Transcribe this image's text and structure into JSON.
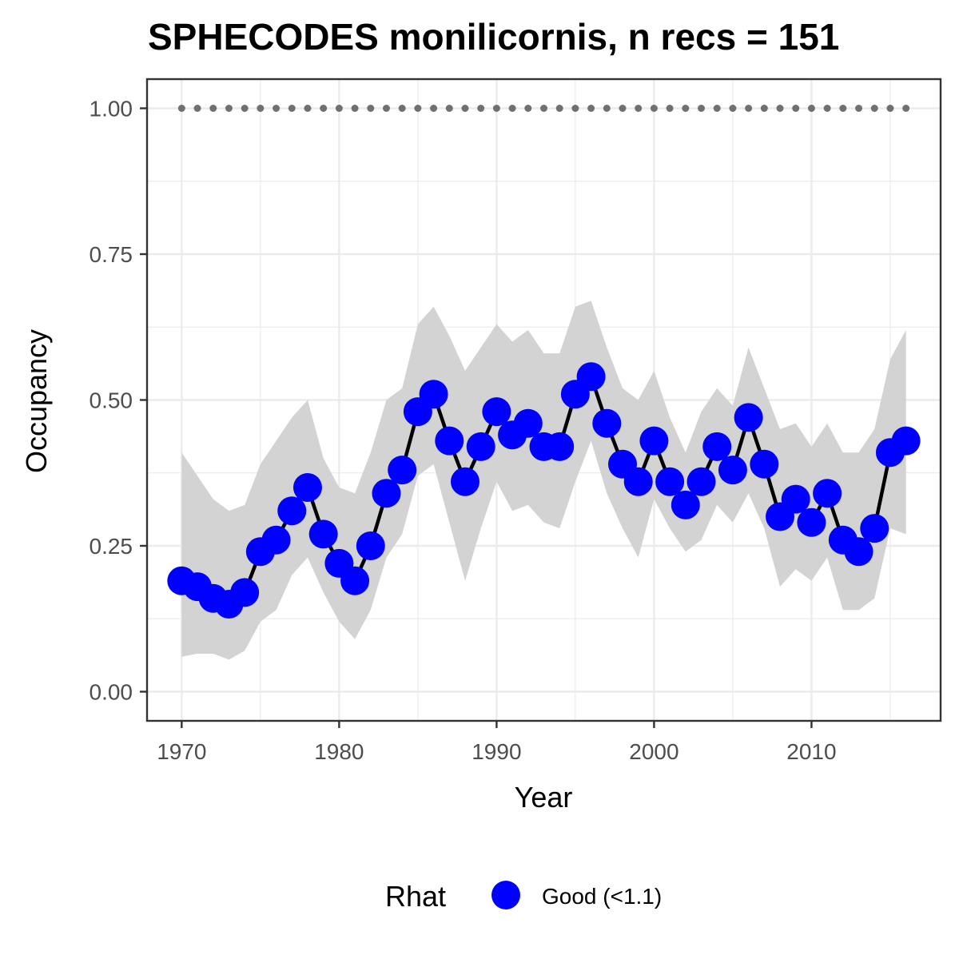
{
  "chart_data": {
    "type": "line",
    "title": "SPHECODES monilicornis, n recs = 151",
    "xlabel": "Year",
    "ylabel": "Occupancy",
    "xlim": [
      1967.8,
      2018.2
    ],
    "ylim": [
      -0.05,
      1.05
    ],
    "x_ticks": [
      1970,
      1980,
      1990,
      2000,
      2010
    ],
    "x_tick_labels": [
      "1970",
      "1980",
      "1990",
      "2000",
      "2010"
    ],
    "y_ticks": [
      0,
      0.25,
      0.5,
      0.75,
      1.0
    ],
    "y_tick_labels": [
      "0.00",
      "0.25",
      "0.50",
      "0.75",
      "1.00"
    ],
    "grid": true,
    "legend": {
      "title": "Rhat",
      "position": "bottom",
      "entries": [
        {
          "label": "Good (<1.1)",
          "color": "#0000ff"
        }
      ]
    },
    "colors": {
      "points": "#0000ff",
      "line": "#000000",
      "ribbon": "#d3d3d3",
      "reference": "#707070",
      "panel_border": "#333333",
      "grid": "#ebebeb"
    },
    "series": [
      {
        "name": "Good (<1.1)",
        "x": [
          1970,
          1971,
          1972,
          1973,
          1974,
          1975,
          1976,
          1977,
          1978,
          1979,
          1980,
          1981,
          1982,
          1983,
          1984,
          1985,
          1986,
          1987,
          1988,
          1989,
          1990,
          1991,
          1992,
          1993,
          1994,
          1995,
          1996,
          1997,
          1998,
          1999,
          2000,
          2001,
          2002,
          2003,
          2004,
          2005,
          2006,
          2007,
          2008,
          2009,
          2010,
          2011,
          2012,
          2013,
          2014,
          2015,
          2016
        ],
        "y": [
          0.19,
          0.18,
          0.16,
          0.15,
          0.17,
          0.24,
          0.26,
          0.31,
          0.35,
          0.27,
          0.22,
          0.19,
          0.25,
          0.34,
          0.38,
          0.48,
          0.51,
          0.43,
          0.36,
          0.42,
          0.48,
          0.44,
          0.46,
          0.42,
          0.42,
          0.51,
          0.54,
          0.46,
          0.39,
          0.36,
          0.43,
          0.36,
          0.32,
          0.36,
          0.42,
          0.38,
          0.47,
          0.39,
          0.3,
          0.33,
          0.29,
          0.34,
          0.26,
          0.24,
          0.28,
          0.41,
          0.43
        ],
        "lower": [
          0.06,
          0.065,
          0.065,
          0.055,
          0.07,
          0.12,
          0.14,
          0.2,
          0.23,
          0.17,
          0.12,
          0.09,
          0.14,
          0.23,
          0.27,
          0.37,
          0.39,
          0.29,
          0.19,
          0.28,
          0.36,
          0.31,
          0.32,
          0.29,
          0.28,
          0.36,
          0.43,
          0.34,
          0.28,
          0.23,
          0.33,
          0.28,
          0.24,
          0.26,
          0.32,
          0.29,
          0.34,
          0.28,
          0.18,
          0.21,
          0.19,
          0.23,
          0.14,
          0.14,
          0.16,
          0.28,
          0.27
        ],
        "upper": [
          0.41,
          0.37,
          0.33,
          0.31,
          0.32,
          0.39,
          0.43,
          0.47,
          0.5,
          0.4,
          0.35,
          0.34,
          0.41,
          0.5,
          0.52,
          0.63,
          0.66,
          0.61,
          0.55,
          0.59,
          0.63,
          0.6,
          0.62,
          0.58,
          0.58,
          0.66,
          0.67,
          0.59,
          0.52,
          0.5,
          0.55,
          0.47,
          0.41,
          0.48,
          0.52,
          0.49,
          0.59,
          0.52,
          0.45,
          0.46,
          0.42,
          0.46,
          0.41,
          0.41,
          0.45,
          0.57,
          0.62
        ]
      }
    ],
    "reference_line": {
      "y": 1.0,
      "x": [
        1970,
        1971,
        1972,
        1973,
        1974,
        1975,
        1976,
        1977,
        1978,
        1979,
        1980,
        1981,
        1982,
        1983,
        1984,
        1985,
        1986,
        1987,
        1988,
        1989,
        1990,
        1991,
        1992,
        1993,
        1994,
        1995,
        1996,
        1997,
        1998,
        1999,
        2000,
        2001,
        2002,
        2003,
        2004,
        2005,
        2006,
        2007,
        2008,
        2009,
        2010,
        2011,
        2012,
        2013,
        2014,
        2015,
        2016
      ]
    }
  }
}
